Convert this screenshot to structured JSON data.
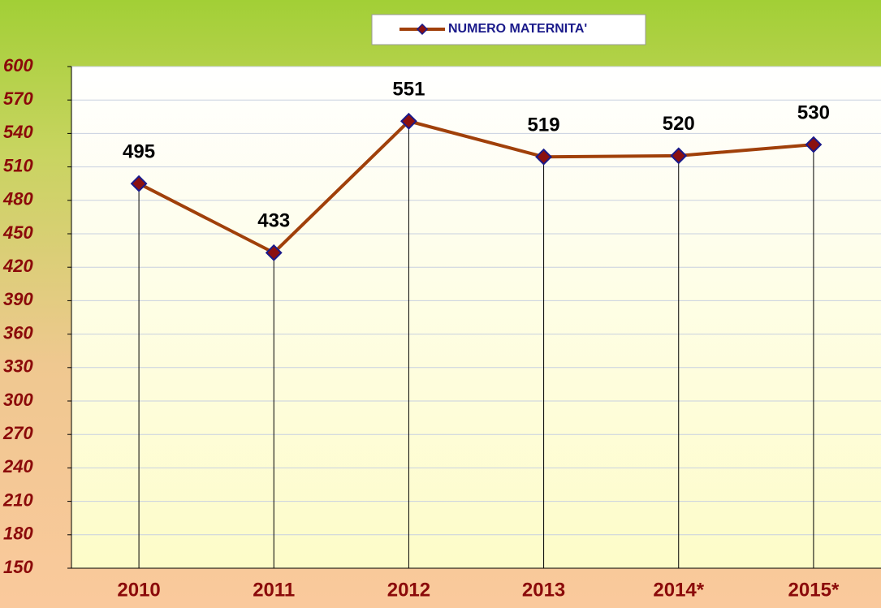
{
  "chart_data": {
    "type": "line",
    "categories": [
      "2010",
      "2011",
      "2012",
      "2013",
      "2014*",
      "2015*"
    ],
    "series": [
      {
        "name": "NUMERO MATERNITA'",
        "color": "#a0400a",
        "values": [
          495,
          433,
          551,
          519,
          520,
          530
        ]
      }
    ],
    "ylim": [
      150,
      600
    ],
    "yticks": [
      150,
      180,
      210,
      240,
      270,
      300,
      330,
      360,
      390,
      420,
      450,
      480,
      510,
      540,
      570,
      600
    ],
    "grid": true,
    "drop_lines": true,
    "legend": "top"
  }
}
